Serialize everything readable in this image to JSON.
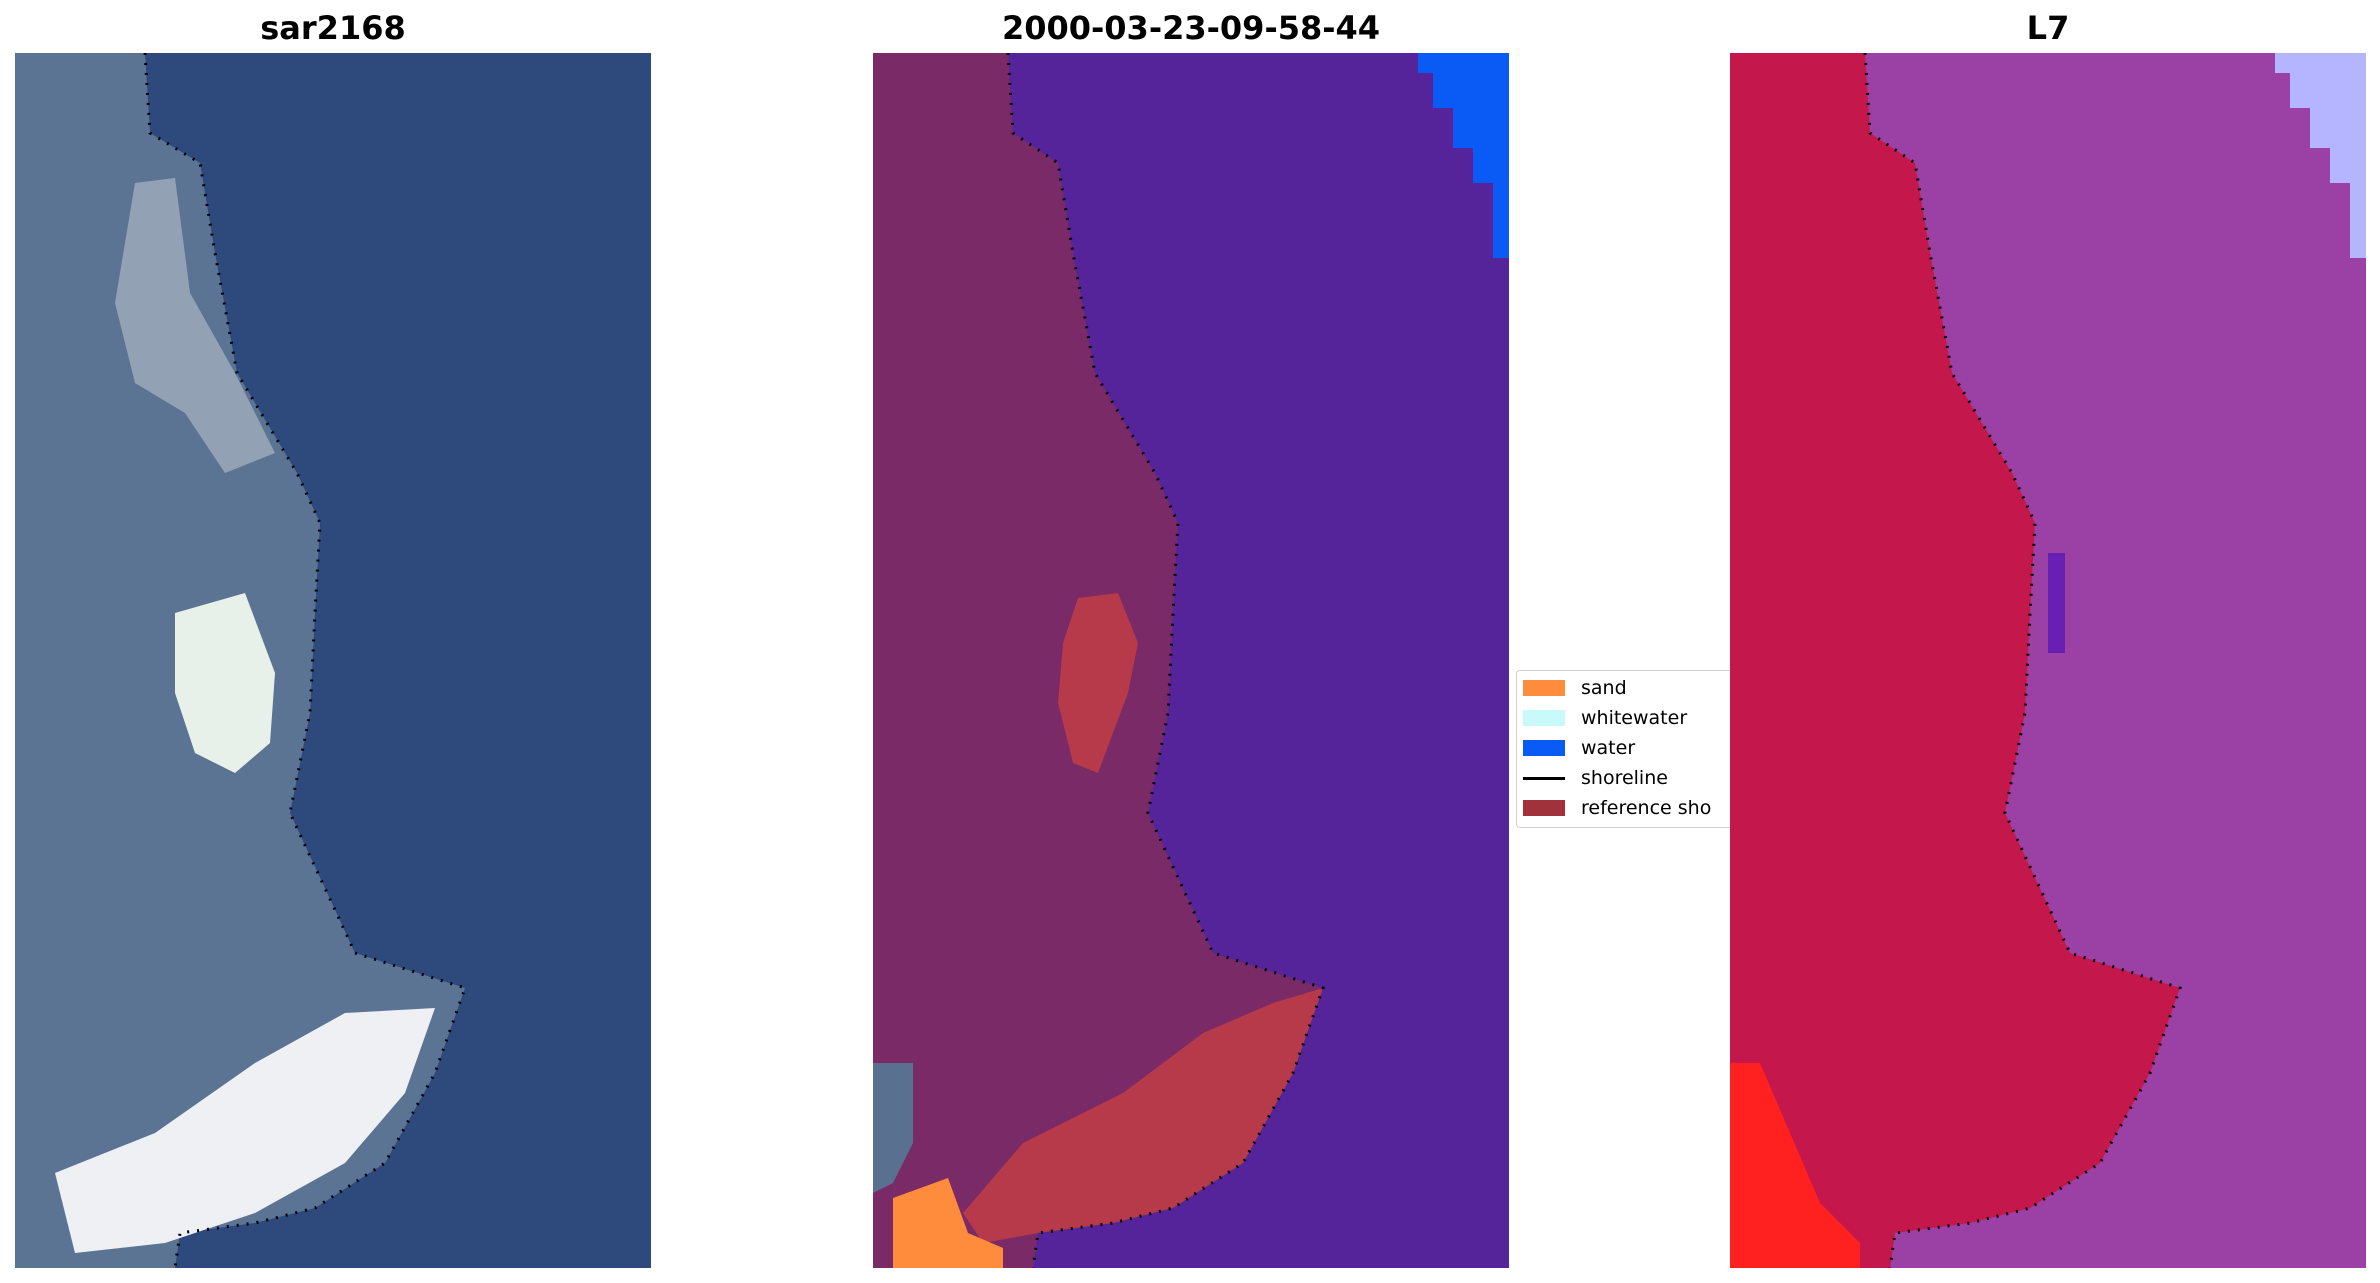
{
  "panels": [
    {
      "id": "sar",
      "title": "sar2168"
    },
    {
      "id": "classified",
      "title": "2000-03-23-09-58-44"
    },
    {
      "id": "landsat",
      "title": "L7"
    }
  ],
  "legend": {
    "items": [
      {
        "label": "sand",
        "color": "#ff8c3c",
        "kind": "patch"
      },
      {
        "label": "whitewater",
        "color": "#c8fafa",
        "kind": "patch"
      },
      {
        "label": "water",
        "color": "#0a5af5",
        "kind": "patch"
      },
      {
        "label": "shoreline",
        "color": "#000000",
        "kind": "line"
      },
      {
        "label": "reference sho",
        "color": "#a0323c",
        "kind": "patch"
      }
    ]
  },
  "colors": {
    "sar_water": "#2e4a7c",
    "sar_land": "#5c7494",
    "sar_bright": "#eef4ee",
    "class_water": "#55249b",
    "class_ocean": "#0a5af5",
    "class_land": "#7a2a66",
    "class_reference": "#b63a4a",
    "class_sand": "#ff8c3c",
    "class_rock": "#5a7090",
    "l7_water": "#9b40a4",
    "l7_land": "#c4184c",
    "l7_deep": "#6a1fb4",
    "l7_bright": "#ff2020",
    "l7_ice": "#b4b4ff"
  }
}
